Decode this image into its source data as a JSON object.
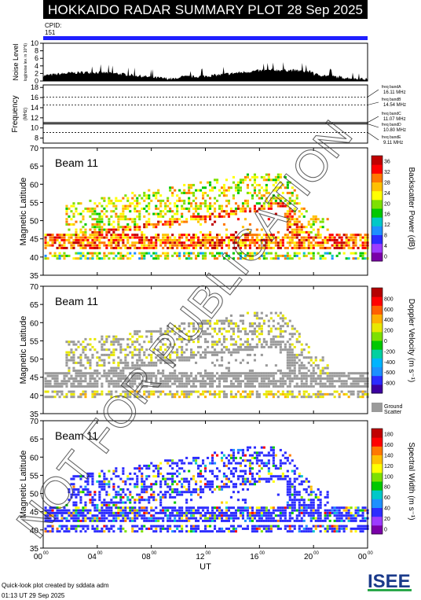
{
  "header": {
    "title": "HOKKAIDO RADAR SUMMARY PLOT",
    "date": "28 Sep 2025",
    "cpid_label": "CPID:",
    "cpid_value": "151"
  },
  "colors": {
    "title_bg": "#000000",
    "cpid_bar": "#1f1fff",
    "ground_scatter": "#9a9a9a",
    "power_scale": [
      "#7a00a8",
      "#9c3cff",
      "#2c2cff",
      "#1e90ff",
      "#00c8c8",
      "#00c800",
      "#7ee000",
      "#ffff00",
      "#ffc000",
      "#ff7800",
      "#ff0000",
      "#c00000"
    ],
    "velocity_scale": [
      "#3c00a0",
      "#2c2cff",
      "#1e90ff",
      "#00b4ff",
      "#00d0a0",
      "#00c800",
      "#7ee000",
      "#e8e800",
      "#ffb000",
      "#ff6000",
      "#ff0000",
      "#b40000"
    ]
  },
  "noise_panel": {
    "ylabel": "Noise Level",
    "ylabel_sub": "log(noise lev. in 10^6)",
    "yticks": [
      "0",
      "2",
      "4",
      "6",
      "8",
      "10"
    ]
  },
  "freq_panel": {
    "ylabel": "Frequency",
    "ylabel_unit": "(MHz)",
    "yticks": [
      "8",
      "10",
      "12",
      "14",
      "16",
      "18"
    ],
    "bands": [
      {
        "name": "freq bandA",
        "value": "16.11 MHz"
      },
      {
        "name": "freq bandB",
        "value": "14.54 MHz"
      },
      {
        "name": "freq bandC",
        "value": "11.07 MHz"
      },
      {
        "name": "freq bandD",
        "value": "10.80 MHz"
      },
      {
        "name": "freq bandE",
        "value": "9.11 MHz"
      }
    ]
  },
  "panels": [
    {
      "beam": "Beam 11",
      "ylabel": "Magnetic Latitude",
      "cbar_label": "Backscatter Power (dB)",
      "cbar_ticks": [
        "0",
        "4",
        "8",
        "12",
        "16",
        "20",
        "24",
        "28",
        "32",
        "36"
      ]
    },
    {
      "beam": "Beam 11",
      "ylabel": "Magnetic Latitude",
      "cbar_label": "Doppler Velocity (m s⁻¹)",
      "cbar_ticks": [
        "-800",
        "-600",
        "-400",
        "-200",
        "0",
        "200",
        "400",
        "600",
        "800"
      ],
      "gs_label_1": "Ground",
      "gs_label_2": "Scatter"
    },
    {
      "beam": "Beam 11",
      "ylabel": "Magnetic Latitude",
      "cbar_label": "Spectral Width (m s⁻¹)",
      "cbar_ticks": [
        "0",
        "20",
        "40",
        "60",
        "80",
        "100",
        "120",
        "140",
        "160",
        "180"
      ]
    }
  ],
  "xaxis": {
    "label": "UT",
    "ticks": [
      {
        "h": "00",
        "m": "00"
      },
      {
        "h": "04",
        "m": "00"
      },
      {
        "h": "08",
        "m": "00"
      },
      {
        "h": "12",
        "m": "00"
      },
      {
        "h": "16",
        "m": "00"
      },
      {
        "h": "20",
        "m": "00"
      },
      {
        "h": "00",
        "m": "00"
      }
    ]
  },
  "chart_data": {
    "type": "heatmap",
    "x_unit": "UT hours",
    "xlim": [
      0,
      24
    ],
    "lat_ticks": [
      "35",
      "40",
      "45",
      "50",
      "55",
      "60",
      "65",
      "70"
    ],
    "ylim": [
      35,
      70
    ],
    "noise_ylim": [
      0,
      10
    ],
    "freq_ylim": [
      7,
      18.5
    ],
    "freq_values": [
      16.11,
      14.54,
      11.07,
      10.8,
      9.11
    ]
  },
  "watermark": "NOT FOR PUBLICATION",
  "footer": {
    "line1": "Quick-look plot created by sddata adm",
    "line2": "01:13 UT 29 Sep 2025"
  },
  "logo_text": "ISEE"
}
